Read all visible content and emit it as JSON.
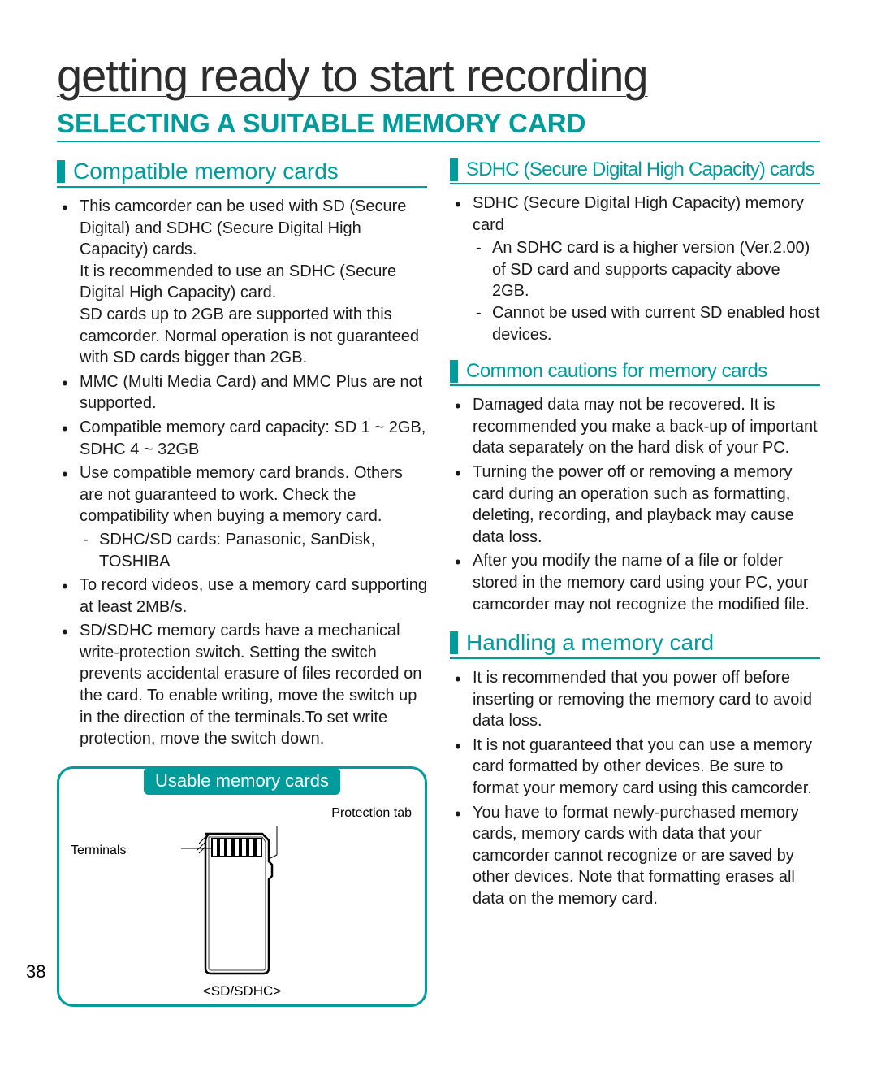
{
  "page": {
    "title": "getting ready to start recording",
    "section": "SELECTING A SUITABLE MEMORY CARD",
    "number": "38"
  },
  "colors": {
    "accent": "#009b9b",
    "text": "#1a1a1a",
    "title": "#2d2d2d",
    "white": "#ffffff"
  },
  "left": {
    "heading": "Compatible memory cards",
    "items": [
      {
        "text": "This camcorder can be used with SD (Secure Digital) and SDHC (Secure Digital High Capacity) cards.\nIt is recommended to use an SDHC (Secure Digital High Capacity) card.\nSD cards up to 2GB are supported with this camcorder. Normal operation is not guaranteed with SD cards bigger than 2GB."
      },
      {
        "text": "MMC (Multi Media Card) and MMC Plus are not supported."
      },
      {
        "text": "Compatible memory card capacity: SD 1 ~ 2GB, SDHC 4 ~ 32GB"
      },
      {
        "text": "Use compatible memory card brands. Others are not guaranteed to work. Check the compatibility when buying a memory card.",
        "sub": [
          "SDHC/SD cards: Panasonic, SanDisk, TOSHIBA"
        ]
      },
      {
        "text": "To record videos, use a memory card supporting at least 2MB/s."
      },
      {
        "text": "SD/SDHC memory cards have a mechanical write-protection switch. Setting the switch prevents accidental erasure of files recorded on the card. To enable writing, move the switch up in the direction of the terminals.To set write protection, move the switch down."
      }
    ],
    "box": {
      "title": "Usable memory cards",
      "terminals": "Terminals",
      "protection": "Protection tab",
      "caption": "<SD/SDHC>"
    }
  },
  "right": {
    "sdhc": {
      "heading": "SDHC (Secure Digital High Capacity) cards",
      "items": [
        {
          "text": "SDHC (Secure Digital High Capacity) memory card",
          "sub": [
            "An SDHC card is a higher version (Ver.2.00) of SD card and supports capacity above 2GB.",
            "Cannot be used with current SD enabled host devices."
          ]
        }
      ]
    },
    "cautions": {
      "heading": "Common cautions for memory cards",
      "items": [
        {
          "text": "Damaged data may not be recovered. It is recommended you make a back-up of important data separately on the hard disk of your PC."
        },
        {
          "text": "Turning the power off or removing a memory card during an operation such as formatting, deleting, recording, and playback may cause data loss."
        },
        {
          "text": "After you modify the name of a file or folder stored in the memory card using your PC, your camcorder may not recognize the modified file."
        }
      ]
    },
    "handling": {
      "heading": "Handling a memory card",
      "items": [
        {
          "text": "It is recommended that you power off before inserting or removing the memory card to avoid data loss."
        },
        {
          "text": "It is not guaranteed that you can use a memory card formatted by other devices. Be sure to format your memory card using this camcorder."
        },
        {
          "text": "You have to format newly-purchased memory cards, memory cards with data that your camcorder cannot recognize or are saved by other devices. Note that formatting erases all data on the memory card."
        }
      ]
    }
  }
}
